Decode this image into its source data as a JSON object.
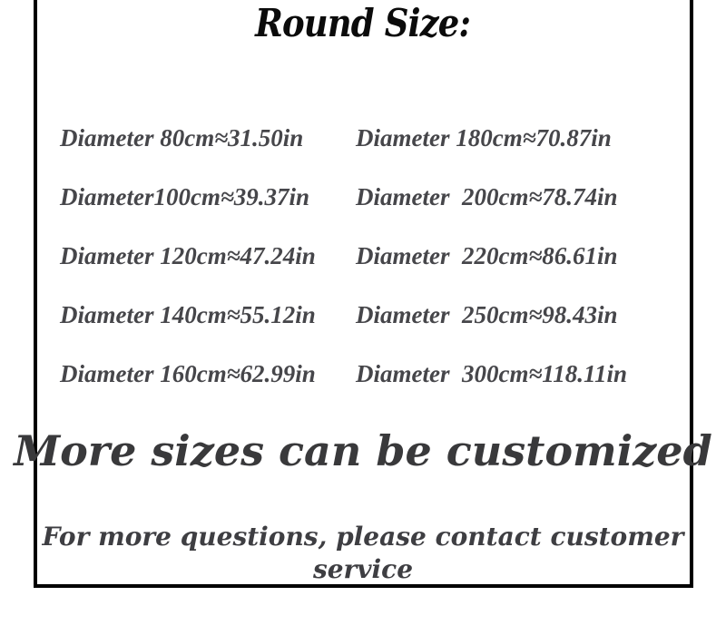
{
  "page": {
    "background": "#ffffff",
    "frame_border_color": "#000000"
  },
  "title": "Round Size:",
  "sizes": {
    "rows": [
      {
        "left": "Diameter 80cm≈31.50in",
        "right": "Diameter 180cm≈70.87in"
      },
      {
        "left": "Diameter100cm≈39.37in",
        "right": "Diameter  200cm≈78.74in"
      },
      {
        "left": "Diameter 120cm≈47.24in",
        "right": "Diameter  220cm≈86.61in"
      },
      {
        "left": "Diameter 140cm≈55.12in",
        "right": "Diameter  250cm≈98.43in"
      },
      {
        "left": "Diameter 160cm≈62.99in",
        "right": "Diameter  300cm≈118.11in"
      }
    ]
  },
  "notes": {
    "customize": "More sizes can be customized",
    "contact": "For more questions, please contact customer service"
  },
  "colors": {
    "title_text": "#0b0b0b",
    "row_text": "#46464a",
    "customize_text": "#39393b",
    "contact_text": "#3e3e42"
  }
}
